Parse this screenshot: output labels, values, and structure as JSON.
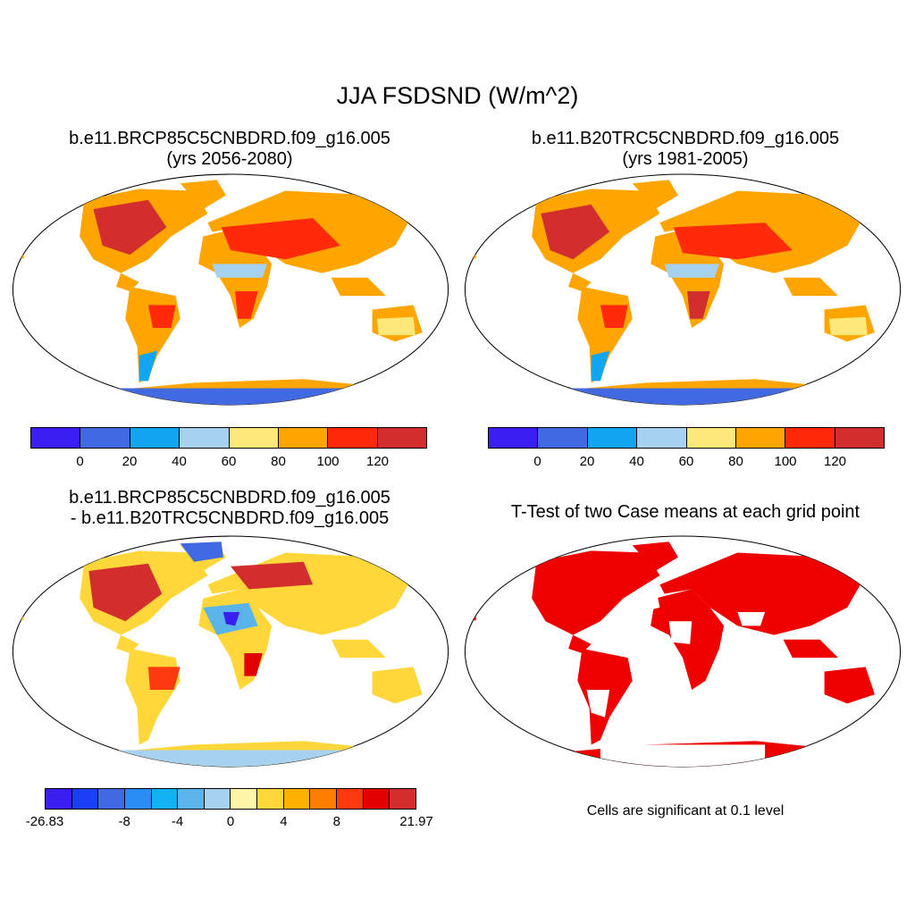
{
  "title": "JJA FSDSND (W/m^2)",
  "panels": {
    "top_left": {
      "title": "b.e11.BRCP85C5CNBDRD.f09_g16.005",
      "subtitle": "(yrs 2056-2080)"
    },
    "top_right": {
      "title": "b.e11.B20TRC5CNBDRD.f09_g16.005",
      "subtitle": "(yrs 1981-2005)"
    },
    "bottom_left": {
      "title": "b.e11.BRCP85C5CNBDRD.f09_g16.005",
      "subtitle": "- b.e11.B20TRC5CNBDRD.f09_g16.005"
    },
    "bottom_right": {
      "title": "T-Test of two Case means at each grid point",
      "caption": "Cells are significant at 0.1 level"
    }
  },
  "colorbars": {
    "absolute": {
      "colors": [
        "#3b1ff0",
        "#4169e1",
        "#12a6f2",
        "#a6d2ef",
        "#ffe87a",
        "#ffa500",
        "#ff2a0a",
        "#d22e2e"
      ],
      "ticks": [
        "0",
        "20",
        "40",
        "60",
        "80",
        "100",
        "120"
      ]
    },
    "difference": {
      "colors": [
        "#3b1ff0",
        "#1b3ff5",
        "#4169e1",
        "#2a8cf5",
        "#12b2f2",
        "#5ab4ea",
        "#a6d2ef",
        "#fff6a8",
        "#ffd73a",
        "#ffb000",
        "#ff7e00",
        "#ff3a10",
        "#e00000",
        "#d22e2e"
      ],
      "ticks": [
        "-26.83",
        "-8",
        "-4",
        "0",
        "4",
        "8",
        "21.97"
      ]
    },
    "significance_color": "#ee0000"
  }
}
